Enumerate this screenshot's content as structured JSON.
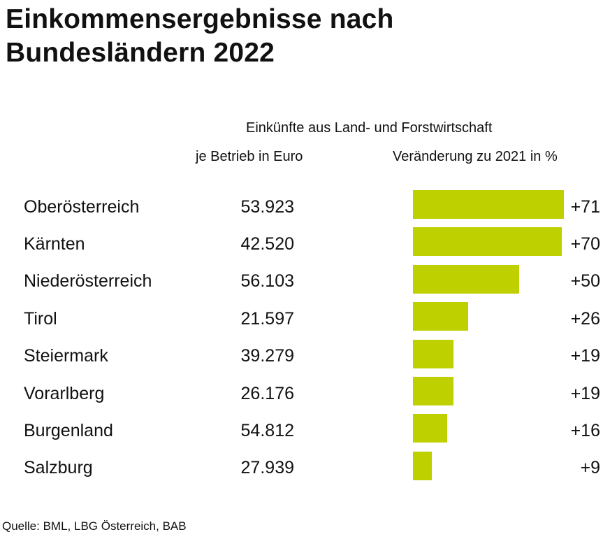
{
  "title_line1": "Einkommensergebnisse nach",
  "title_line2": "Bundesländern 2022",
  "header_group": "Einkünfte aus Land- und Forstwirtschaft",
  "header_absolute": "je Betrieb in Euro",
  "header_change": "Veränderung zu 2021 in %",
  "source": "Quelle: BML, LBG Österreich, BAB",
  "colors": {
    "bar": "#bfd000",
    "text": "#111111",
    "background": "#ffffff"
  },
  "chart_data": {
    "type": "bar",
    "orientation": "horizontal",
    "categories": [
      "Oberösterreich",
      "Kärnten",
      "Niederösterreich",
      "Tirol",
      "Steiermark",
      "Vorarlberg",
      "Burgenland",
      "Salzburg"
    ],
    "income_values": [
      "53.923",
      "42.520",
      "56.103",
      "21.597",
      "39.279",
      "26.176",
      "54.812",
      "27.939"
    ],
    "change_values": [
      71,
      70,
      50,
      26,
      19,
      19,
      16,
      9
    ],
    "change_labels": [
      "+71",
      "+70",
      "+50",
      "+26",
      "+19",
      "+19",
      "+16",
      "+9"
    ],
    "grid": false,
    "legend": "none"
  }
}
